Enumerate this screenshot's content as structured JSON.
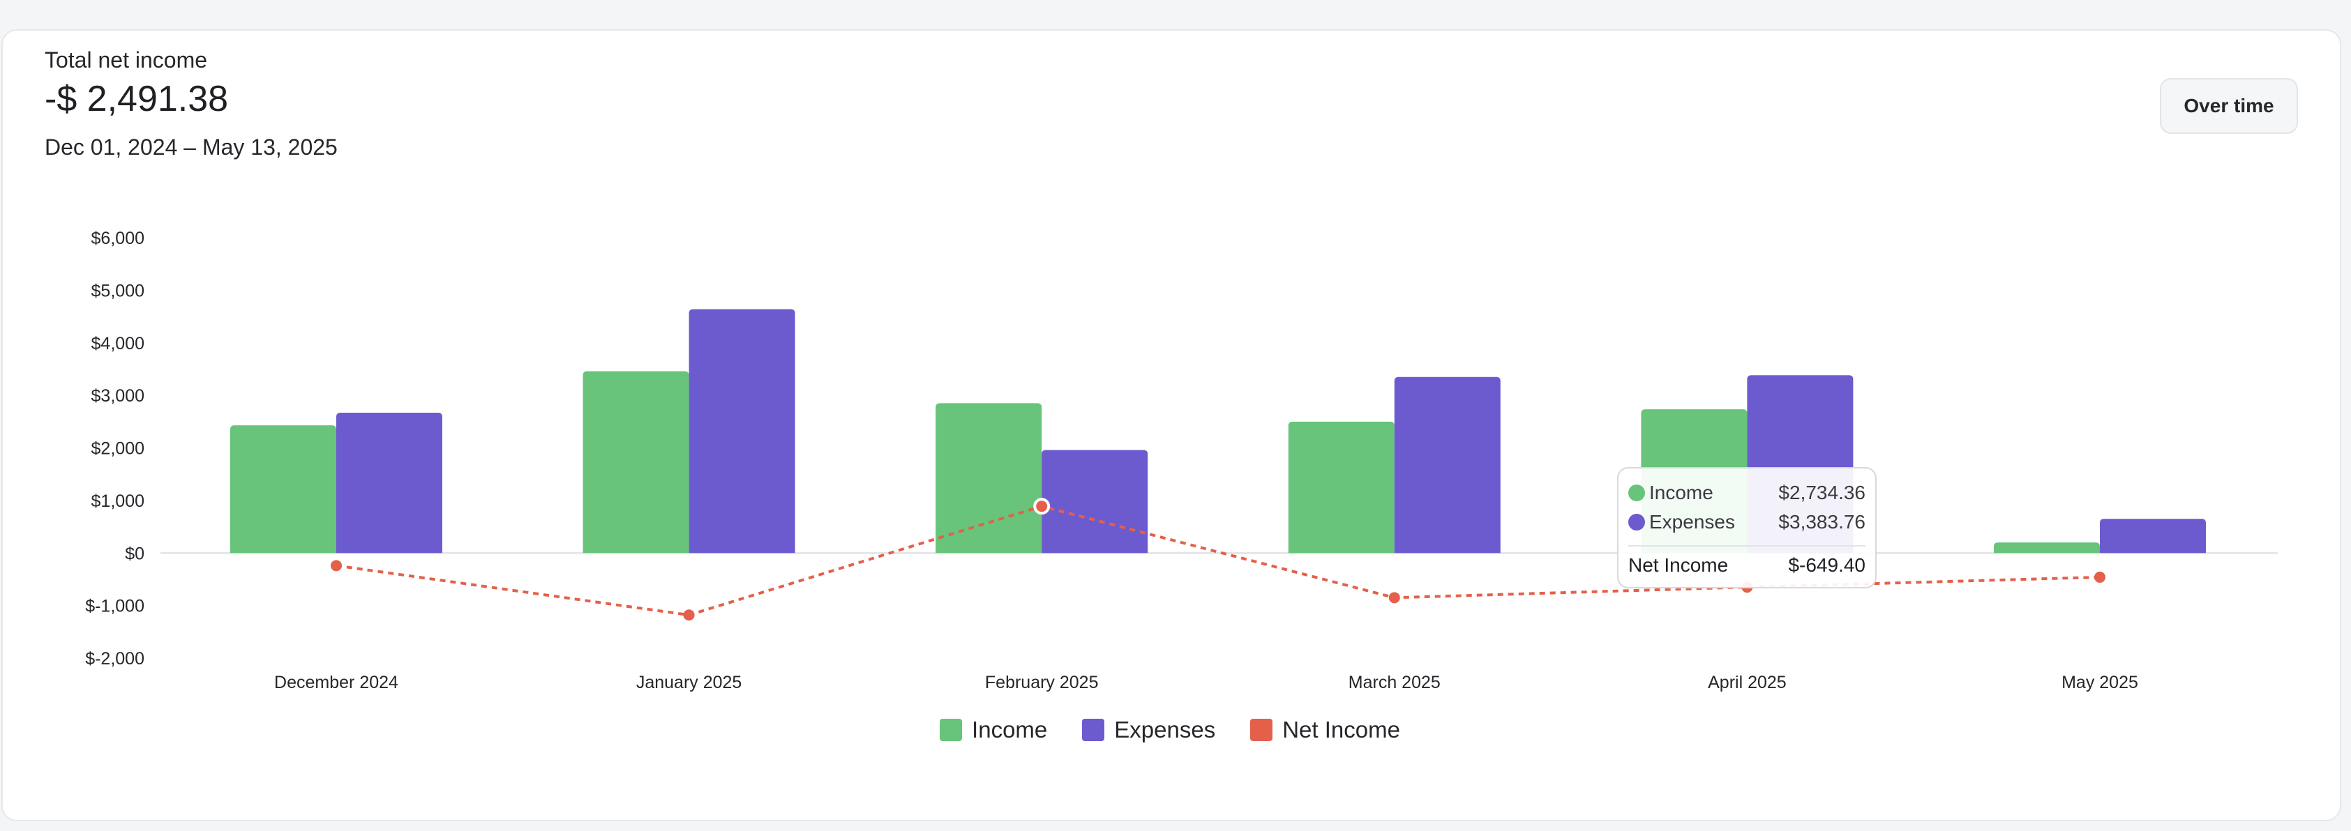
{
  "header": {
    "title": "Total net income",
    "value": "-$ 2,491.38",
    "range": "Dec 01, 2024 – May 13, 2025"
  },
  "controls": {
    "view_button": "Over time"
  },
  "colors": {
    "income": "#67c47a",
    "expenses": "#6b5bcf",
    "net_income": "#e4604a"
  },
  "tooltip": {
    "income_label": "Income",
    "income_value": "$2,734.36",
    "expenses_label": "Expenses",
    "expenses_value": "$3,383.76",
    "net_label": "Net Income",
    "net_value": "$-649.40"
  },
  "chart_data": {
    "type": "bar",
    "categories": [
      "December 2024",
      "January 2025",
      "February 2025",
      "March 2025",
      "April 2025",
      "May 2025"
    ],
    "series": [
      {
        "name": "Income",
        "type": "bar",
        "values": [
          2430,
          3460,
          2850,
          2500,
          2734.36,
          200
        ]
      },
      {
        "name": "Expenses",
        "type": "bar",
        "values": [
          2670,
          4640,
          1960,
          3350,
          3383.76,
          650
        ]
      },
      {
        "name": "Net Income",
        "type": "line",
        "values": [
          -240,
          -1180,
          890,
          -850,
          -649.4,
          -460
        ]
      }
    ],
    "ylim": [
      -2000,
      6000
    ],
    "yticks": [
      6000,
      5000,
      4000,
      3000,
      2000,
      1000,
      0,
      -1000,
      -2000
    ],
    "ytick_labels": [
      "$6,000",
      "$5,000",
      "$4,000",
      "$3,000",
      "$2,000",
      "$1,000",
      "$0",
      "$-1,000",
      "$-2,000"
    ],
    "legend": [
      "Income",
      "Expenses",
      "Net Income"
    ],
    "legend_position": "bottom-center",
    "grid": false
  }
}
